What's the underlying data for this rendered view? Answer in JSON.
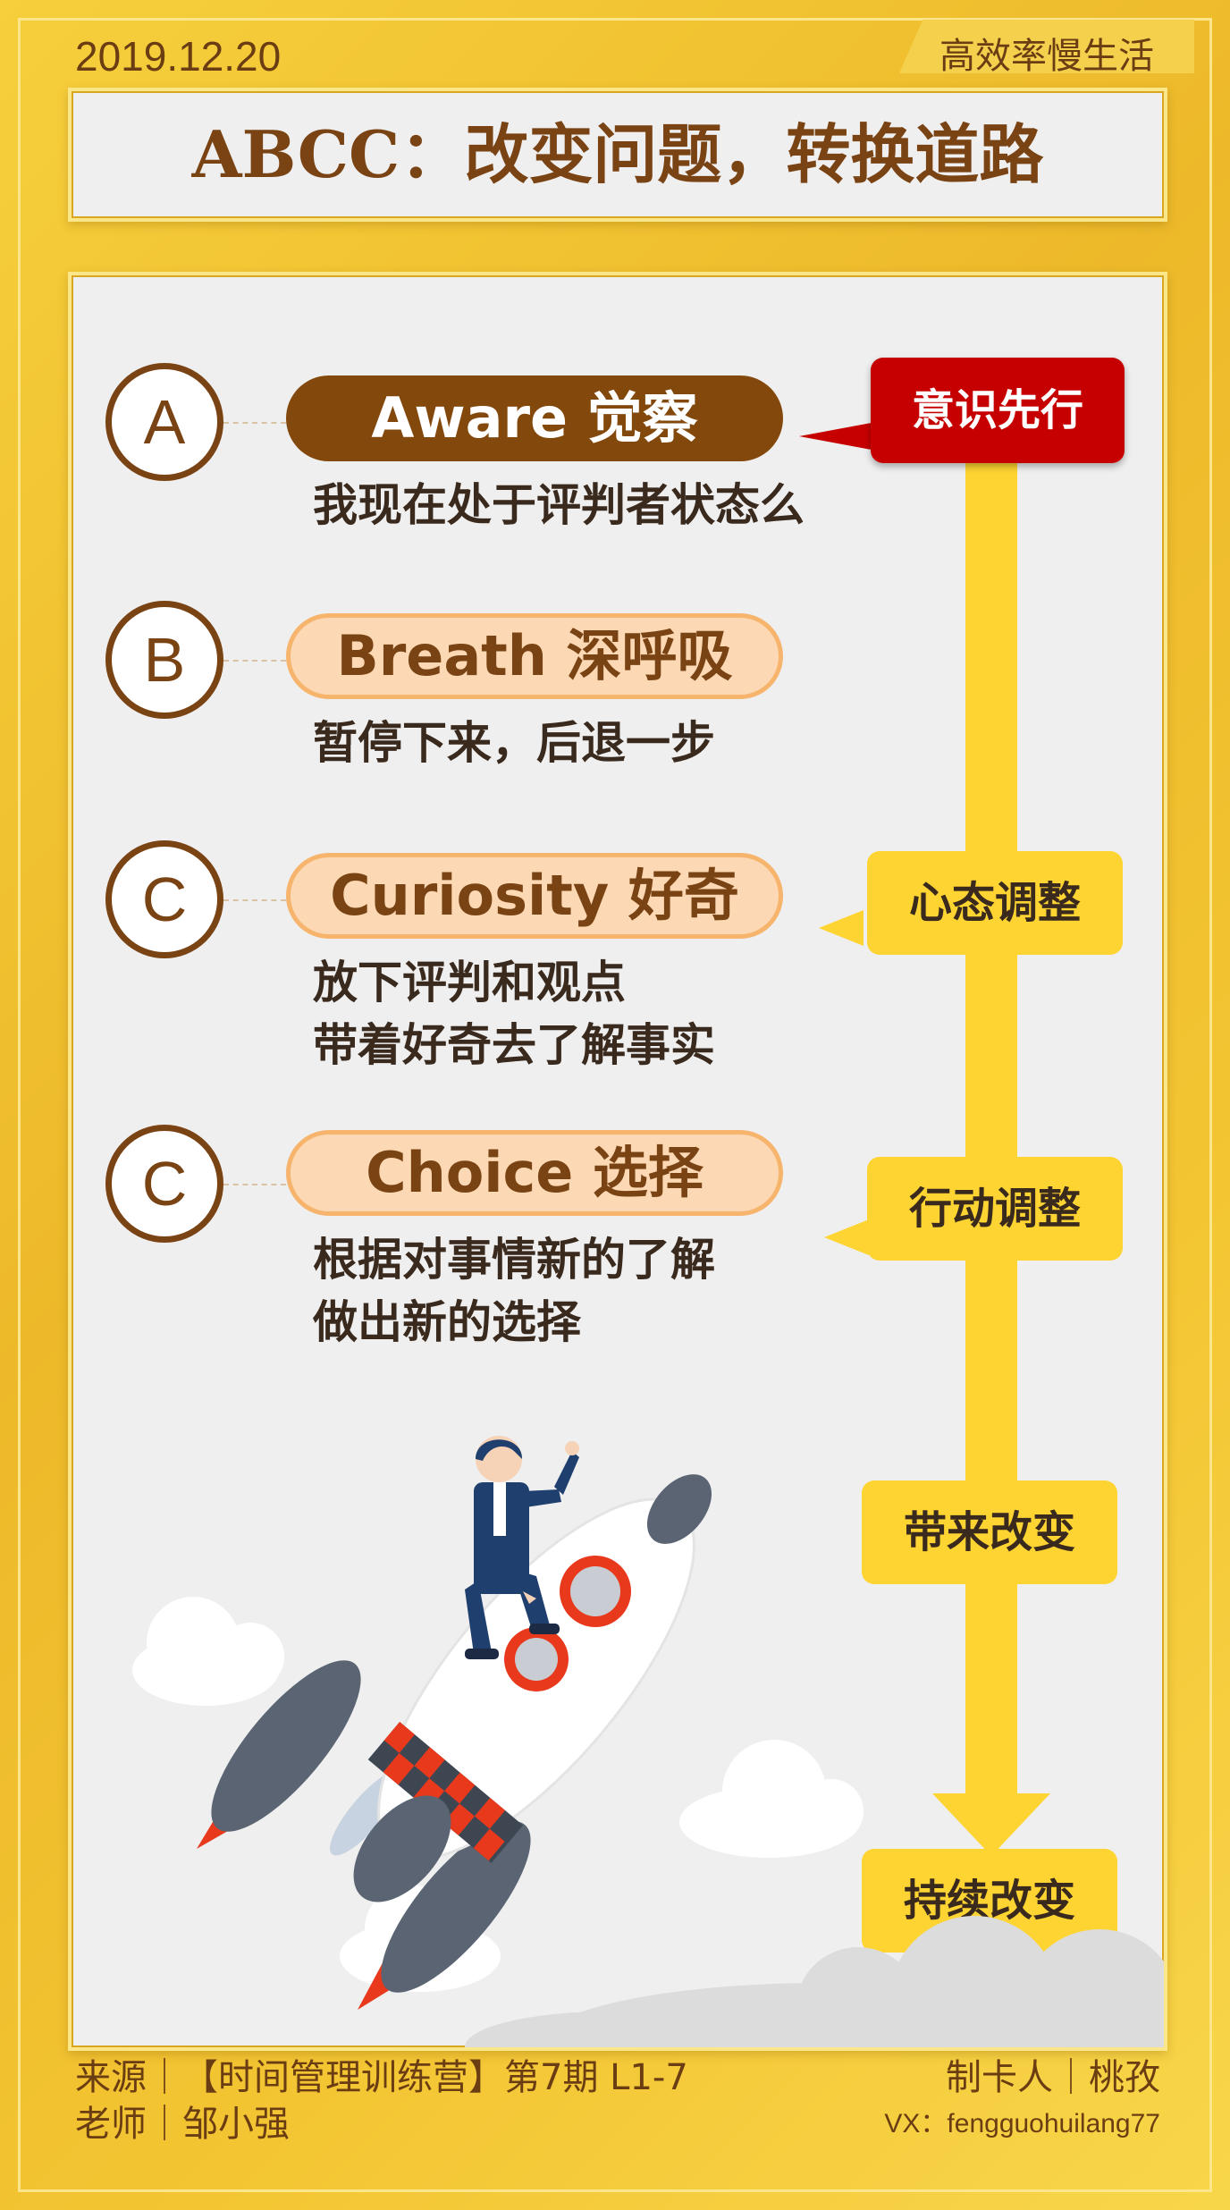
{
  "header": {
    "date": "2019.12.20",
    "brand": "高效率慢生活",
    "title": "ABCC：改变问题，转换道路"
  },
  "steps": [
    {
      "letter": "A",
      "label": "Aware 觉察",
      "desc_lines": [
        "我现在处于评判者状态么"
      ]
    },
    {
      "letter": "B",
      "label": "Breath 深呼吸",
      "desc_lines": [
        "暂停下来，后退一步"
      ]
    },
    {
      "letter": "C",
      "label": "Curiosity 好奇",
      "desc_lines": [
        "放下评判和观点",
        "带着好奇去了解事实"
      ]
    },
    {
      "letter": "C",
      "label": "Choice 选择",
      "desc_lines": [
        "根据对事情新的了解",
        "做出新的选择"
      ]
    }
  ],
  "stages": [
    "意识先行",
    "心态调整",
    "行动调整",
    "带来改变",
    "持续改变"
  ],
  "footer": {
    "source": "来源｜【时间管理训练营】第7期  L1-7",
    "teacher": "老师｜邹小强",
    "maker": "制卡人｜桃孜",
    "vx": "VX：fengguohuilang77"
  },
  "colors": {
    "brown": "#7a4314",
    "gold": "#fdd431",
    "red": "#c60000",
    "peach": "#fcd9b4"
  }
}
